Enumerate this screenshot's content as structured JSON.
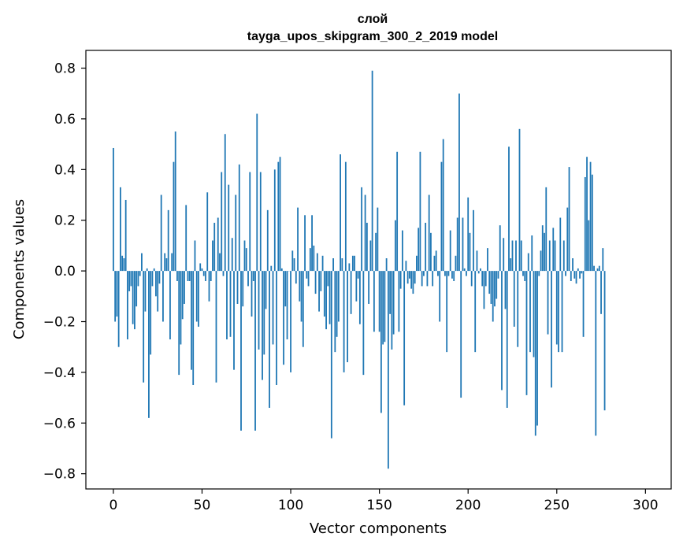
{
  "chart_data": {
    "type": "bar",
    "title_line1": "слой",
    "title_line2": "tayga_upos_skipgram_300_2_2019 model",
    "xlabel": "Vector components",
    "ylabel": "Components values",
    "xlim": [
      -15.5,
      314.5
    ],
    "ylim": [
      -0.86,
      0.87
    ],
    "xticks": [
      0,
      50,
      100,
      150,
      200,
      250,
      300
    ],
    "yticks": [
      -0.8,
      -0.6,
      -0.4,
      -0.2,
      0.0,
      0.2,
      0.4,
      0.6,
      0.8
    ],
    "xtick_labels": [
      "0",
      "50",
      "100",
      "150",
      "200",
      "250",
      "300"
    ],
    "ytick_labels": [
      "−0.8",
      "−0.6",
      "−0.4",
      "−0.2",
      "0.0",
      "0.2",
      "0.4",
      "0.6",
      "0.8"
    ],
    "bar_color": "#1f77b4",
    "values": [
      0.485,
      -0.2,
      -0.18,
      -0.3,
      0.33,
      0.06,
      0.05,
      0.28,
      -0.27,
      -0.08,
      -0.06,
      -0.21,
      -0.23,
      -0.14,
      -0.06,
      -0.02,
      0.07,
      -0.44,
      -0.16,
      0.01,
      -0.58,
      -0.33,
      -0.06,
      0.01,
      -0.1,
      -0.16,
      -0.05,
      0.3,
      -0.2,
      0.07,
      0.05,
      0.24,
      -0.27,
      0.07,
      0.43,
      0.55,
      -0.04,
      -0.41,
      -0.29,
      -0.19,
      -0.13,
      0.26,
      -0.04,
      -0.04,
      -0.39,
      -0.45,
      0.12,
      -0.2,
      -0.22,
      0.03,
      0.01,
      -0.02,
      -0.04,
      0.31,
      -0.12,
      -0.04,
      0.12,
      0.19,
      -0.44,
      0.21,
      0.07,
      0.39,
      -0.02,
      0.54,
      -0.27,
      0.34,
      -0.26,
      0.13,
      -0.39,
      0.3,
      -0.13,
      0.42,
      -0.63,
      -0.14,
      0.12,
      0.09,
      -0.06,
      0.39,
      -0.18,
      -0.04,
      -0.63,
      0.62,
      -0.31,
      0.39,
      -0.43,
      -0.33,
      -0.15,
      0.24,
      -0.54,
      0.02,
      -0.29,
      0.4,
      -0.45,
      0.43,
      0.45,
      0.01,
      -0.37,
      -0.14,
      -0.27,
      0.0,
      -0.4,
      0.08,
      0.05,
      -0.05,
      0.25,
      -0.12,
      -0.2,
      -0.3,
      0.22,
      -0.03,
      -0.06,
      0.09,
      0.22,
      0.1,
      -0.09,
      0.07,
      -0.16,
      -0.08,
      0.06,
      -0.18,
      -0.23,
      -0.06,
      -0.21,
      -0.66,
      0.05,
      -0.32,
      -0.26,
      -0.2,
      0.46,
      0.05,
      -0.4,
      0.43,
      -0.36,
      0.03,
      -0.17,
      0.06,
      0.06,
      -0.12,
      -0.03,
      -0.21,
      0.33,
      -0.41,
      0.3,
      0.19,
      -0.13,
      0.12,
      0.79,
      -0.24,
      0.15,
      0.25,
      -0.24,
      -0.56,
      -0.29,
      -0.28,
      0.05,
      -0.78,
      -0.17,
      -0.31,
      -0.25,
      0.2,
      0.47,
      -0.24,
      -0.07,
      0.16,
      -0.53,
      0.04,
      -0.05,
      -0.03,
      -0.07,
      -0.09,
      -0.05,
      0.06,
      0.17,
      0.47,
      -0.06,
      -0.02,
      0.19,
      -0.06,
      0.3,
      0.15,
      -0.06,
      0.06,
      0.08,
      -0.02,
      -0.2,
      0.43,
      0.52,
      -0.02,
      -0.32,
      -0.02,
      0.16,
      -0.03,
      -0.04,
      0.06,
      0.21,
      0.7,
      -0.5,
      0.21,
      0.01,
      -0.02,
      0.29,
      0.15,
      -0.06,
      0.24,
      -0.32,
      0.08,
      -0.01,
      0.01,
      -0.06,
      -0.15,
      -0.06,
      0.09,
      -0.09,
      -0.13,
      -0.2,
      -0.14,
      -0.11,
      -0.03,
      0.18,
      -0.47,
      0.13,
      -0.15,
      -0.54,
      0.49,
      0.05,
      0.12,
      -0.22,
      0.12,
      -0.3,
      0.56,
      0.12,
      -0.02,
      -0.04,
      -0.49,
      0.07,
      -0.32,
      0.14,
      -0.34,
      -0.65,
      -0.61,
      -0.02,
      0.08,
      0.18,
      0.15,
      0.33,
      -0.25,
      0.12,
      -0.46,
      0.17,
      0.12,
      -0.29,
      -0.32,
      0.21,
      -0.32,
      0.12,
      -0.02,
      0.25,
      0.41,
      -0.04,
      0.05,
      -0.03,
      -0.05,
      0.01,
      -0.03,
      -0.01,
      -0.26,
      0.37,
      0.45,
      0.2,
      0.43,
      0.38,
      0.02,
      -0.65,
      0.01,
      0.02,
      -0.17,
      0.09,
      -0.55
    ]
  }
}
